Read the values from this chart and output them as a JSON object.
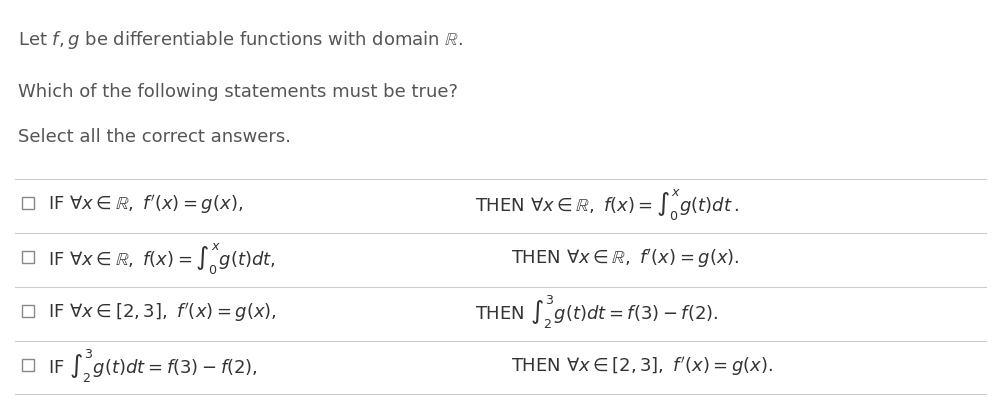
{
  "background_color": "#ffffff",
  "text_color": "#555555",
  "math_color": "#333333",
  "header_lines": [
    "Let $f, g$ be differentiable functions with domain $\\mathbb{R}$.",
    "Which of the following statements must be true?",
    "Select all the correct answers."
  ],
  "options": [
    {
      "if_part": "IF $\\forall x \\in \\mathbb{R},\\ f'(x) = g(x),$",
      "then_part": "THEN $\\forall x \\in \\mathbb{R},\\ f(x) = \\int_0^x g(t)dt\\,.$"
    },
    {
      "if_part": "IF $\\forall x \\in \\mathbb{R},\\ f(x) = \\int_0^x g(t)dt,$",
      "then_part": "THEN $\\forall x \\in \\mathbb{R},\\ f'(x) = g(x).$"
    },
    {
      "if_part": "IF $\\forall x \\in [2,3],\\ f'(x) = g(x),$",
      "then_part": "THEN $\\int_2^3 g(t)dt = f(3) - f(2).$"
    },
    {
      "if_part": "IF $\\int_2^3 g(t)dt = f(3) - f(2),$",
      "then_part": "THEN $\\forall x \\in [2,3],\\ f'(x) = g(x).$"
    }
  ],
  "figsize": [
    10.01,
    4.14
  ],
  "dpi": 100
}
